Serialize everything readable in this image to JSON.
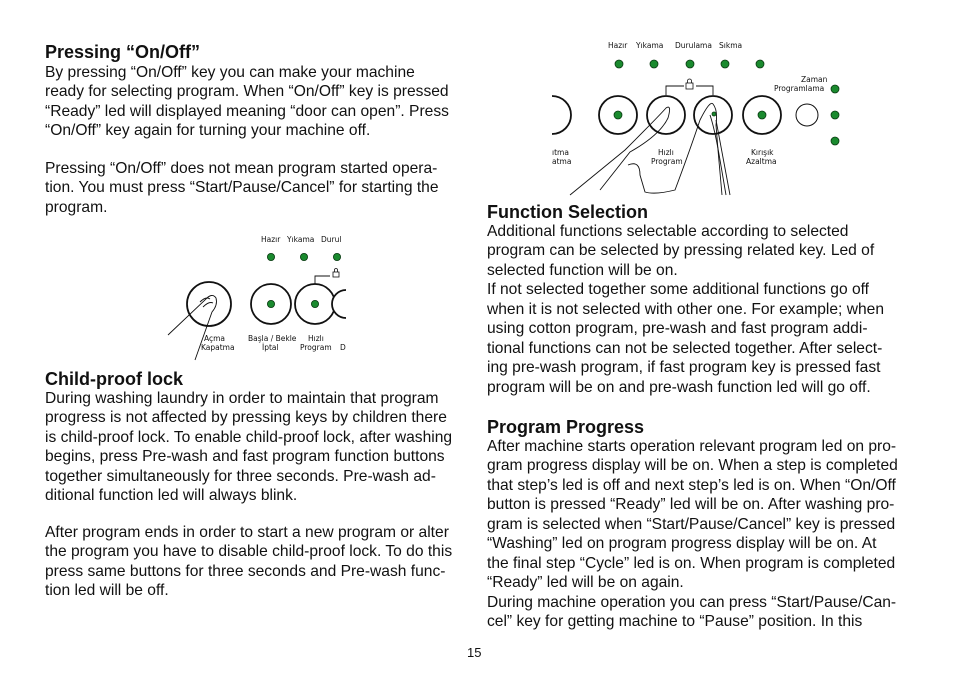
{
  "page_number": "15",
  "sections": {
    "on_off": {
      "title": "Pressing “On/Off”",
      "para1": [
        "By pressing “On/Off” key you can make your machine",
        "ready for selecting program. When “On/Off” key is pressed",
        "“Ready” led will displayed meaning “door can open”. Press",
        "“On/Off” key again for turning your machine off."
      ],
      "para2": [
        "Pressing “On/Off” does not mean program started opera-",
        "tion. You must press “Start/Pause/Cancel” for starting the",
        "program."
      ]
    },
    "child_lock": {
      "title": "Child-proof lock",
      "para1": [
        "During washing laundry in order to maintain that program",
        "progress is not affected by pressing keys by children there",
        "is child-proof lock. To enable child-proof lock, after washing",
        "begins, press Pre-wash and fast program function buttons",
        "together simultaneously for three seconds. Pre-wash ad-",
        "ditional function led will always blink."
      ],
      "para2": [
        "After program ends in order to start a new program or alter",
        "the program you have to disable child-proof lock. To do this",
        "press same buttons for three seconds and Pre-wash func-",
        "tion led will be off."
      ]
    },
    "function_selection": {
      "title": "Function Selection",
      "para1": [
        "Additional functions selectable according to selected",
        "program can be selected by pressing related key. Led of",
        "selected function will be on.",
        "If not selected together some additional functions go off",
        "when it is not selected with other one. For example; when",
        "using cotton program, pre-wash and fast program addi-",
        "tional functions can not be selected together. After select-",
        "ing pre-wash program, if fast program key is pressed fast",
        "program will be on and pre-wash function led will go off."
      ]
    },
    "program_progress": {
      "title": "Program Progress",
      "para1": [
        "After machine starts operation relevant program led on pro-",
        "gram progress display will be on. When a step is completed",
        "that step’s led is off and next step’s led is on. When “On/Off",
        "button is pressed “Ready” led will be on. After washing pro-",
        "gram is selected when “Start/Pause/Cancel” key is pressed",
        "“Washing” led on program progress display will be on. At",
        "the final step “Cycle” led is on. When program is completed",
        "“Ready” led will be on again.",
        "During machine operation you can press “Start/Pause/Can-",
        "cel” key for getting machine to “Pause” position. In this"
      ]
    }
  },
  "figure_onoff": {
    "leds": [
      "Hazır",
      "Yıkama",
      "Durul"
    ],
    "buttons": [
      [
        "Açma",
        "Kapatma"
      ],
      [
        "Başla / Bekle",
        "İptal"
      ],
      [
        "Hızlı",
        "Program"
      ],
      [
        "D"
      ]
    ],
    "led_color": "#1a8a2e"
  },
  "figure_lock": {
    "leds": [
      "Hazır",
      "Yıkama",
      "Durulama",
      "Sıkma"
    ],
    "buttons": [
      [
        "ıtma",
        "atma"
      ],
      [
        "Hızlı",
        "Program"
      ],
      [
        "Kırışık",
        "Azaltma"
      ]
    ],
    "timer_label": [
      "Zaman",
      "Programlama"
    ],
    "led_color": "#1a8a2e"
  }
}
